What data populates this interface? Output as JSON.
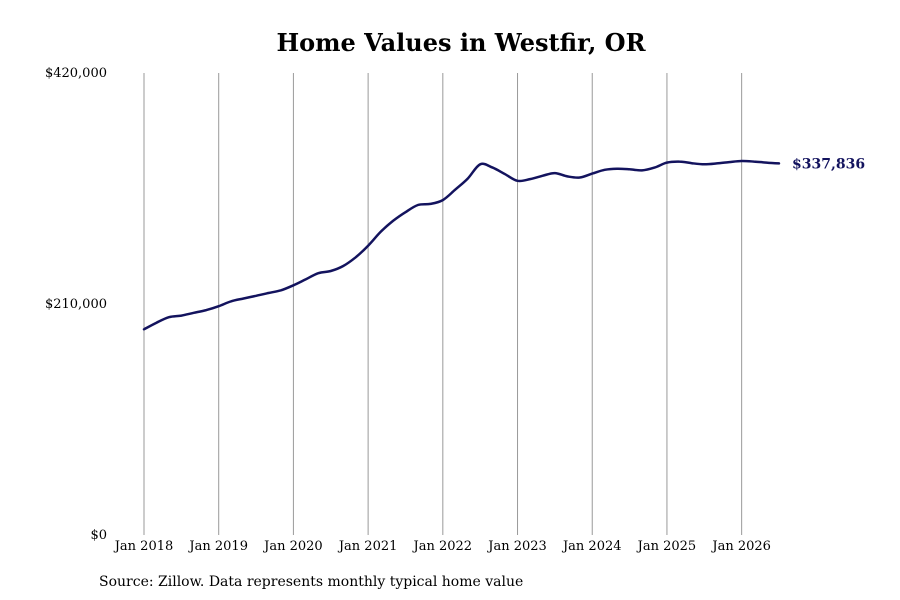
{
  "source_note": "Source: Zillow. Data represents monthly typical home value",
  "chart_data": {
    "type": "line",
    "title": "Home Values in Westfir, OR",
    "xlabel": "",
    "ylabel": "",
    "ylim": [
      0,
      420000
    ],
    "xlim": [
      "2018-01",
      "2026-07"
    ],
    "grid": "vertical",
    "line_color": "#13135e",
    "grid_color": "#9a9a9a",
    "y_ticks": [
      {
        "value": 0,
        "label": "$0"
      },
      {
        "value": 210000,
        "label": "$210,000"
      },
      {
        "value": 420000,
        "label": "$420,000"
      }
    ],
    "x_ticks": [
      {
        "value": "2018-01",
        "label": "Jan 2018"
      },
      {
        "value": "2019-01",
        "label": "Jan 2019"
      },
      {
        "value": "2020-01",
        "label": "Jan 2020"
      },
      {
        "value": "2021-01",
        "label": "Jan 2021"
      },
      {
        "value": "2022-01",
        "label": "Jan 2022"
      },
      {
        "value": "2023-01",
        "label": "Jan 2023"
      },
      {
        "value": "2024-01",
        "label": "Jan 2024"
      },
      {
        "value": "2025-01",
        "label": "Jan 2025"
      },
      {
        "value": "2026-01",
        "label": "Jan 2026"
      }
    ],
    "end_label": "$337,836",
    "series": [
      {
        "x": [
          "2018-01",
          "2018-03",
          "2018-05",
          "2018-07",
          "2018-09",
          "2018-11",
          "2019-01",
          "2019-03",
          "2019-05",
          "2019-07",
          "2019-09",
          "2019-11",
          "2020-01",
          "2020-03",
          "2020-05",
          "2020-07",
          "2020-09",
          "2020-11",
          "2021-01",
          "2021-03",
          "2021-05",
          "2021-07",
          "2021-09",
          "2021-11",
          "2022-01",
          "2022-03",
          "2022-05",
          "2022-07",
          "2022-09",
          "2022-11",
          "2023-01",
          "2023-03",
          "2023-05",
          "2023-07",
          "2023-09",
          "2023-11",
          "2024-01",
          "2024-03",
          "2024-05",
          "2024-07",
          "2024-09",
          "2024-11",
          "2025-01",
          "2025-03",
          "2025-05",
          "2025-07",
          "2025-09",
          "2025-11",
          "2026-01",
          "2026-03",
          "2026-05",
          "2026-07"
        ],
        "values": [
          187000,
          193000,
          198000,
          199500,
          202000,
          204500,
          208000,
          212500,
          215000,
          217500,
          220000,
          222500,
          227000,
          232500,
          238000,
          240000,
          244500,
          252500,
          263000,
          275500,
          285500,
          293500,
          300000,
          301000,
          304500,
          314000,
          324000,
          337000,
          334000,
          328000,
          322000,
          323500,
          326500,
          329000,
          326000,
          325000,
          328500,
          332000,
          333000,
          332500,
          331500,
          334000,
          338500,
          339500,
          338000,
          337000,
          337800,
          339000,
          340000,
          339500,
          338500,
          337836
        ]
      }
    ]
  }
}
